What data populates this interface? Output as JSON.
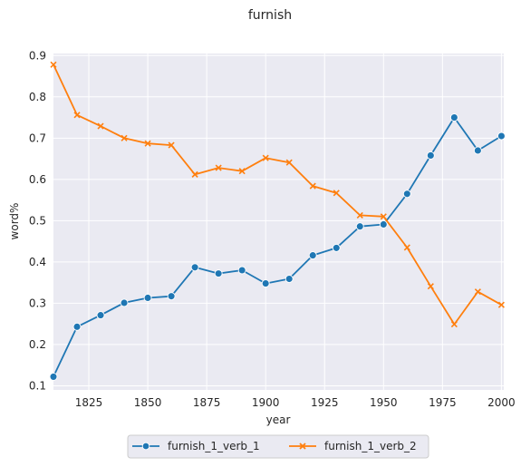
{
  "chart_data": {
    "type": "line",
    "title": "furnish",
    "xlabel": "year",
    "ylabel": "word%",
    "xlim": [
      1810,
      2001
    ],
    "ylim": [
      0.09,
      0.905
    ],
    "xticks": [
      1825,
      1850,
      1875,
      1900,
      1925,
      1950,
      1975,
      2000
    ],
    "yticks": [
      0.1,
      0.2,
      0.3,
      0.4,
      0.5,
      0.6,
      0.7,
      0.8,
      0.9
    ],
    "xtick_labels": [
      "1825",
      "1850",
      "1875",
      "1900",
      "1925",
      "1950",
      "1975",
      "2000"
    ],
    "ytick_labels": [
      "0.1",
      "0.2",
      "0.3",
      "0.4",
      "0.5",
      "0.6",
      "0.7",
      "0.8",
      "0.9"
    ],
    "grid": true,
    "legend_position": "bottom-center, below the plot",
    "x": [
      1810,
      1820,
      1830,
      1840,
      1850,
      1860,
      1870,
      1880,
      1890,
      1900,
      1910,
      1920,
      1930,
      1940,
      1950,
      1960,
      1970,
      1980,
      1990,
      2000
    ],
    "series": [
      {
        "name": "furnish_1_verb_1",
        "color": "#1f77b4",
        "marker": "circle",
        "values": [
          0.122,
          0.243,
          0.271,
          0.301,
          0.313,
          0.317,
          0.387,
          0.372,
          0.38,
          0.348,
          0.359,
          0.416,
          0.434,
          0.486,
          0.491,
          0.565,
          0.658,
          0.75,
          0.67,
          0.705
        ]
      },
      {
        "name": "furnish_1_verb_2",
        "color": "#ff7f0e",
        "marker": "x",
        "values": [
          0.878,
          0.756,
          0.729,
          0.7,
          0.687,
          0.683,
          0.612,
          0.628,
          0.62,
          0.652,
          0.641,
          0.584,
          0.567,
          0.513,
          0.51,
          0.435,
          0.341,
          0.249,
          0.328,
          0.296
        ]
      }
    ],
    "colors": {
      "plot_background": "#eaeaf2",
      "grid": "#ffffff",
      "text": "#262626"
    }
  }
}
